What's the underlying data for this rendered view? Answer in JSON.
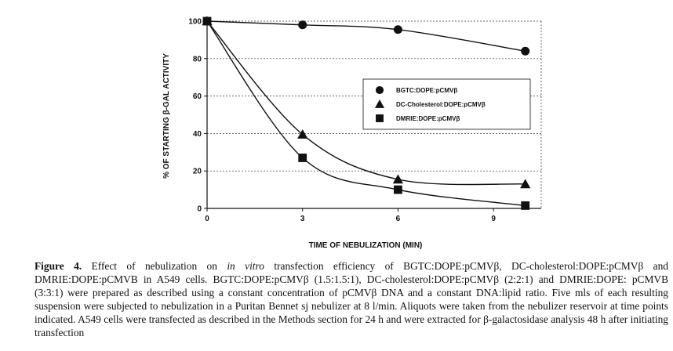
{
  "chart_data": {
    "type": "line",
    "xlabel": "TIME OF NEBULIZATION (MIN)",
    "ylabel": "% OF STARTING β-GAL ACTIVITY",
    "xlim": [
      0,
      10.5
    ],
    "ylim": [
      0,
      100
    ],
    "x_ticks": [
      0,
      3,
      6,
      9
    ],
    "y_ticks": [
      0,
      20,
      40,
      60,
      80,
      100
    ],
    "grid": "horizontal dashed",
    "legend_position": "right-middle",
    "series": [
      {
        "name": "BGTC:DOPE:pCMVβ",
        "marker": "circle",
        "x": [
          0,
          3,
          6,
          10
        ],
        "y": [
          100,
          98,
          95.5,
          84
        ]
      },
      {
        "name": "DC-Cholesterol:DOPE:pCMVβ",
        "marker": "triangle",
        "x": [
          0,
          3,
          6,
          10
        ],
        "y": [
          100,
          39.5,
          15.5,
          13
        ]
      },
      {
        "name": "DMRIE:DOPE:pCMVβ",
        "marker": "square",
        "x": [
          0,
          3,
          6,
          10
        ],
        "y": [
          100,
          27,
          10,
          1.5
        ]
      }
    ]
  },
  "caption": {
    "label": "Figure 4.",
    "text": "Effect of nebulization on in vitro transfection efficiency of BGTC:DOPE:pCMVβ, DC-cholesterol:DOPE:pCMVβ and DMRIE:DOPE:pCMVB in A549 cells. BGTC:DOPE:pCMVβ (1.5:1.5:1), DC-cholesterol:DOPE:pCMVβ (2:2:1) and DMRIE:DOPE: pCMVB (3:3:1) were prepared as described using a constant concentration of pCMVβ DNA and a constant DNA:lipid ratio. Five mls of each resulting suspension were subjected to nebulization in a Puritan Bennet sj nebulizer at 8 l/min. Aliquots were taken from the nebulizer reservoir at time points indicated. A549 cells were transfected as described in the Methods section for 24 h and were extracted for β-galactosidase analysis 48 h after initiating transfection"
  }
}
